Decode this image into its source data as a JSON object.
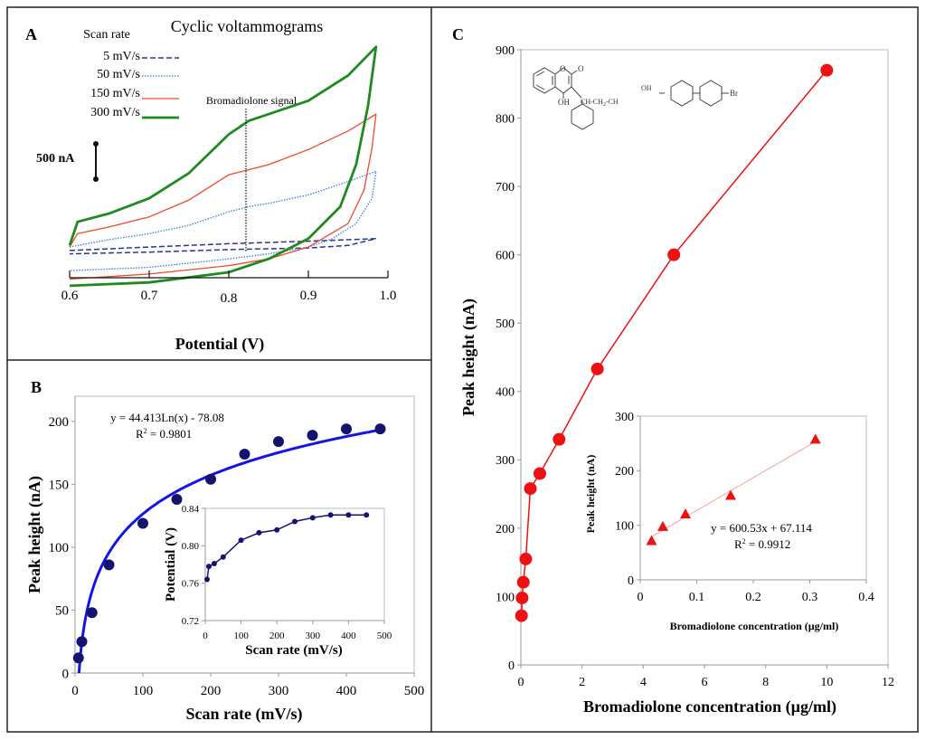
{
  "figure": {
    "panels": [
      "A",
      "B",
      "C"
    ]
  },
  "chart_data": [
    {
      "panel": "A",
      "type": "line",
      "title": "Cyclic voltammograms",
      "xlabel": "Potential (V)",
      "ylabel": "",
      "xlim": [
        0.6,
        1.0
      ],
      "xticks": [
        "0.6",
        "0.7",
        "0.8",
        "0.9",
        "1.0"
      ],
      "legend_title": "Scan rate",
      "legend_position": "top-left",
      "scale_bar_label": "500 nA",
      "annotation": "Bromadiolone signal",
      "annotation_x": 0.825,
      "series": [
        {
          "name": "5 mV/s",
          "color": "#2b3590",
          "style": "dashed",
          "forward": [
            [
              0.6,
              -10
            ],
            [
              0.7,
              10
            ],
            [
              0.8,
              30
            ],
            [
              0.9,
              45
            ],
            [
              0.985,
              60
            ]
          ],
          "reverse": [
            [
              0.985,
              60
            ],
            [
              0.95,
              20
            ],
            [
              0.9,
              5
            ],
            [
              0.8,
              -5
            ],
            [
              0.7,
              -20
            ],
            [
              0.6,
              -30
            ]
          ]
        },
        {
          "name": "50 mV/s",
          "color": "#3a7be0",
          "style": "dotted",
          "forward": [
            [
              0.6,
              10
            ],
            [
              0.65,
              55
            ],
            [
              0.7,
              90
            ],
            [
              0.75,
              140
            ],
            [
              0.8,
              220
            ],
            [
              0.825,
              250
            ],
            [
              0.85,
              270
            ],
            [
              0.9,
              320
            ],
            [
              0.95,
              400
            ],
            [
              0.985,
              460
            ]
          ],
          "reverse": [
            [
              0.985,
              460
            ],
            [
              0.98,
              300
            ],
            [
              0.96,
              150
            ],
            [
              0.93,
              60
            ],
            [
              0.9,
              10
            ],
            [
              0.85,
              -30
            ],
            [
              0.8,
              -60
            ],
            [
              0.7,
              -110
            ],
            [
              0.6,
              -130
            ]
          ]
        },
        {
          "name": "150 mV/s",
          "color": "#f04a2a",
          "style": "solid",
          "forward": [
            [
              0.6,
              10
            ],
            [
              0.61,
              90
            ],
            [
              0.65,
              130
            ],
            [
              0.7,
              190
            ],
            [
              0.75,
              290
            ],
            [
              0.8,
              440
            ],
            [
              0.825,
              470
            ],
            [
              0.85,
              500
            ],
            [
              0.9,
              590
            ],
            [
              0.95,
              700
            ],
            [
              0.985,
              800
            ]
          ],
          "reverse": [
            [
              0.985,
              800
            ],
            [
              0.98,
              600
            ],
            [
              0.97,
              350
            ],
            [
              0.95,
              150
            ],
            [
              0.9,
              10
            ],
            [
              0.85,
              -60
            ],
            [
              0.8,
              -100
            ],
            [
              0.7,
              -150
            ],
            [
              0.6,
              -180
            ]
          ]
        },
        {
          "name": "300 mV/s",
          "color": "#1f8a1f",
          "style": "solid-thick",
          "forward": [
            [
              0.6,
              20
            ],
            [
              0.61,
              160
            ],
            [
              0.65,
              210
            ],
            [
              0.7,
              300
            ],
            [
              0.75,
              450
            ],
            [
              0.8,
              680
            ],
            [
              0.825,
              760
            ],
            [
              0.85,
              800
            ],
            [
              0.9,
              880
            ],
            [
              0.95,
              1030
            ],
            [
              0.985,
              1200
            ]
          ],
          "reverse": [
            [
              0.985,
              1200
            ],
            [
              0.975,
              850
            ],
            [
              0.96,
              500
            ],
            [
              0.94,
              250
            ],
            [
              0.9,
              60
            ],
            [
              0.85,
              -60
            ],
            [
              0.8,
              -140
            ],
            [
              0.7,
              -200
            ],
            [
              0.6,
              -220
            ]
          ]
        }
      ]
    },
    {
      "panel": "B",
      "type": "scatter",
      "xlabel": "Scan rate (mV/s)",
      "ylabel": "Peak height (nA)",
      "xlim": [
        0,
        500
      ],
      "ylim": [
        0,
        220
      ],
      "xticks": [
        "0",
        "100",
        "200",
        "300",
        "400",
        "500"
      ],
      "yticks": [
        "0",
        "50",
        "100",
        "150",
        "200"
      ],
      "x": [
        5,
        10,
        25,
        50,
        100,
        150,
        200,
        250,
        300,
        350,
        400,
        450
      ],
      "values": [
        12,
        25,
        48,
        86,
        119,
        138,
        154,
        174,
        184,
        189,
        194,
        194
      ],
      "point_color": "#14146e",
      "trendline": {
        "type": "log",
        "a": 44.413,
        "b": -78.08,
        "color": "#1414e6"
      },
      "equation": "y = 44.413Ln(x) - 78.08",
      "r2_label": "R",
      "r2_sup": "2",
      "r2_value": " = 0.9801",
      "inset": {
        "type": "line",
        "xlabel": "Scan rate (mV/s)",
        "ylabel": "Potential (V)",
        "xlim": [
          0,
          500
        ],
        "ylim": [
          0.72,
          0.84
        ],
        "xticks": [
          "0",
          "100",
          "200",
          "300",
          "400",
          "500"
        ],
        "yticks": [
          "0.72",
          "0.76",
          "0.80",
          "0.84"
        ],
        "x": [
          5,
          10,
          25,
          50,
          100,
          150,
          200,
          250,
          300,
          350,
          400,
          450
        ],
        "values": [
          0.764,
          0.778,
          0.781,
          0.788,
          0.806,
          0.814,
          0.817,
          0.826,
          0.83,
          0.833,
          0.833,
          0.833
        ],
        "color": "#14146e"
      }
    },
    {
      "panel": "C",
      "type": "line",
      "xlabel": "Bromadiolone concentration (µg/ml)",
      "ylabel": "Peak height (nA)",
      "xlim": [
        0,
        12
      ],
      "ylim": [
        0,
        900
      ],
      "xticks": [
        "0",
        "2",
        "4",
        "6",
        "8",
        "10",
        "12"
      ],
      "yticks": [
        "0",
        "100",
        "200",
        "300",
        "400",
        "500",
        "600",
        "700",
        "800",
        "900"
      ],
      "x": [
        0.02,
        0.04,
        0.08,
        0.16,
        0.31,
        0.62,
        1.25,
        2.5,
        5,
        10
      ],
      "values": [
        72,
        98,
        121,
        155,
        258,
        280,
        330,
        433,
        600,
        870
      ],
      "color": "#ee1111",
      "structure_labels": {
        "o_ring": "O",
        "o_keto": "O",
        "oh1": "OH",
        "oh2": "OH",
        "chain": "CH-CH",
        "ch2sub": "2",
        "ch": "-CH",
        "br": "Br"
      },
      "inset": {
        "type": "scatter",
        "xlabel": "Bromadiolone concentration (µg/ml)",
        "ylabel": "Peak height (nA)",
        "xlim": [
          0,
          0.4
        ],
        "ylim": [
          0,
          300
        ],
        "xticks": [
          "0",
          "0.1",
          "0.2",
          "0.3",
          "0.4"
        ],
        "yticks": [
          "0",
          "100",
          "200",
          "300"
        ],
        "x": [
          0.02,
          0.04,
          0.08,
          0.16,
          0.31
        ],
        "values": [
          72,
          98,
          121,
          155,
          258
        ],
        "trendline": {
          "type": "linear",
          "m": 600.53,
          "b": 67.114,
          "color": "#f4a0a0"
        },
        "equation": "y = 600.53x + 67.114",
        "r2_label": "R",
        "r2_sup": "2",
        "r2_value": " = 0.9912",
        "marker": "triangle",
        "color": "#ee1111"
      }
    }
  ]
}
